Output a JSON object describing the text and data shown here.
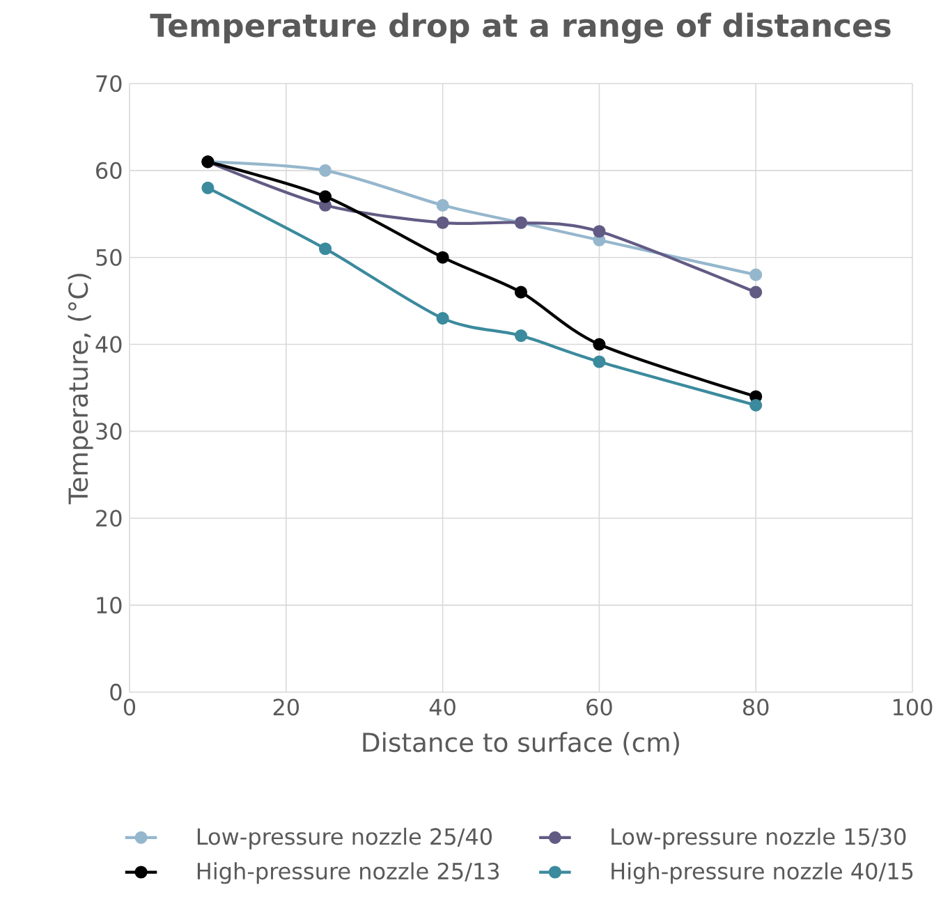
{
  "chart_data": {
    "type": "line",
    "title": "Temperature drop at a range of distances",
    "xlabel": "Distance to surface (cm)",
    "ylabel": "Temperature, (°C)",
    "x": [
      10,
      25,
      40,
      50,
      60,
      80
    ],
    "series": [
      {
        "name": "Low-pressure nozzle 25/40",
        "color": "#95b7cd",
        "values": [
          61,
          60,
          56,
          54,
          52,
          48
        ]
      },
      {
        "name": "Low-pressure nozzle 15/30",
        "color": "#625b84",
        "values": [
          61,
          56,
          54,
          54,
          53,
          46
        ]
      },
      {
        "name": "High-pressure nozzle 25/13",
        "color": "#000000",
        "values": [
          61,
          57,
          50,
          46,
          40,
          34
        ]
      },
      {
        "name": "High-pressure nozzle 40/15",
        "color": "#3b8a9d",
        "values": [
          58,
          51,
          43,
          41,
          38,
          33
        ]
      }
    ],
    "xlim": [
      0,
      100
    ],
    "xticks": [
      0,
      20,
      40,
      60,
      80,
      100
    ],
    "ylim": [
      0,
      70
    ],
    "yticks": [
      0,
      10,
      20,
      30,
      40,
      50,
      60,
      70
    ],
    "grid": true,
    "legend": "bottom",
    "marker": "circle",
    "line_style": "solid"
  }
}
